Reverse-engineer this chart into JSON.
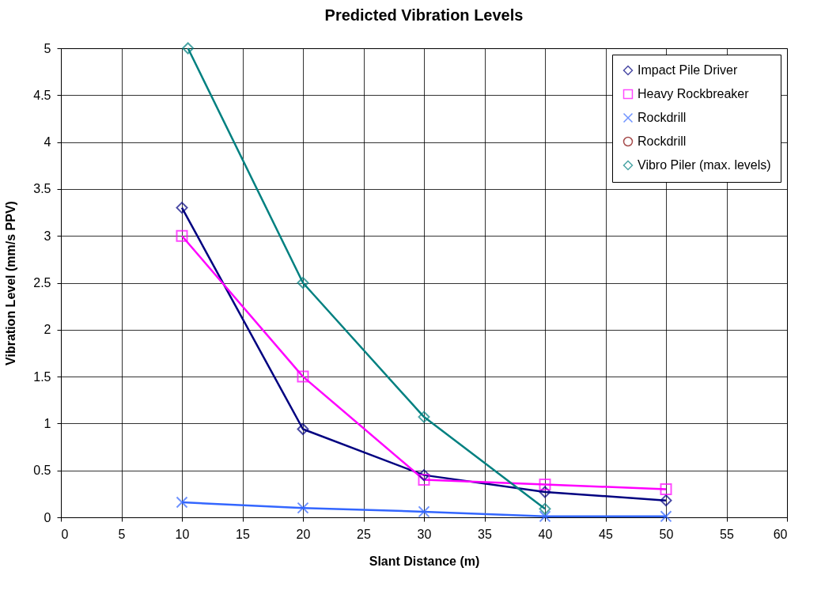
{
  "chart_data": {
    "type": "line",
    "title": "Predicted Vibration Levels",
    "xlabel": "Slant Distance (m)",
    "ylabel": "Vibration Level (mm/s PPV)",
    "x": [
      10,
      20,
      30,
      40,
      50
    ],
    "series": [
      {
        "name": "Impact Pile Driver",
        "color": "#000080",
        "marker": "diamond",
        "values": [
          3.3,
          0.94,
          0.45,
          0.27,
          0.18
        ]
      },
      {
        "name": "Heavy Rockbreaker",
        "color": "#ff00ff",
        "marker": "square",
        "values": [
          3.0,
          1.5,
          0.4,
          0.35,
          0.3
        ]
      },
      {
        "name": "Rockdrill",
        "color": "#3366ff",
        "marker": "cross",
        "values": [
          0.16,
          0.1,
          0.06,
          0.01,
          0.01
        ]
      },
      {
        "name": "Rockdrill",
        "color": "#800000",
        "marker": "circle",
        "values": [
          null,
          null,
          null,
          null,
          null
        ]
      },
      {
        "name": "Vibro Piler (max. levels)",
        "color": "#008080",
        "marker": "diamond",
        "x": [
          10.5,
          20,
          30,
          40
        ],
        "values": [
          5,
          2.5,
          1.07,
          0.09
        ]
      }
    ],
    "xlim": [
      0,
      60
    ],
    "xticks": [
      0,
      5,
      10,
      15,
      20,
      25,
      30,
      35,
      40,
      45,
      50,
      55,
      60
    ],
    "ylim": [
      0,
      5
    ],
    "yticks": [
      0,
      0.5,
      1,
      1.5,
      2,
      2.5,
      3,
      3.5,
      4,
      4.5,
      5
    ],
    "grid": true,
    "legend": "top right"
  }
}
